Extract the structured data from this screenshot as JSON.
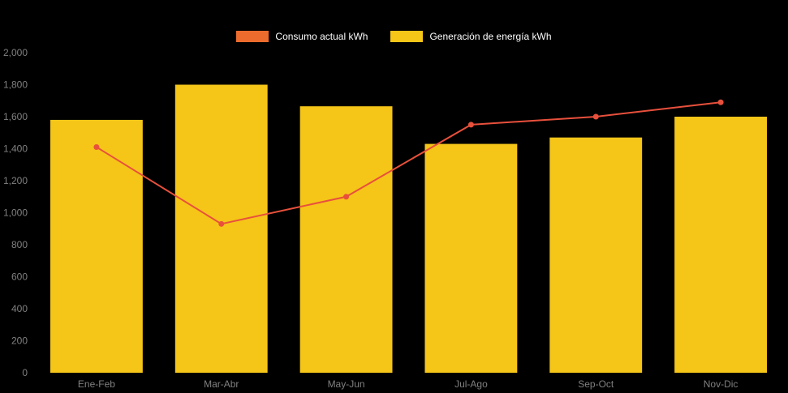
{
  "colors": {
    "background": "#000000",
    "bar": "#F5C518",
    "line": "#E8503C",
    "legend_consumo_swatch": "#EC6B2D",
    "legend_generacion_swatch": "#F5C518",
    "axis_text": "#808080",
    "legend_text": "#FFFFFF"
  },
  "legend": {
    "items": [
      {
        "label": "Consumo actual kWh",
        "color": "#EC6B2D"
      },
      {
        "label": "Generación de energía kWh",
        "color": "#F5C518"
      }
    ]
  },
  "chart_data": {
    "type": "bar+line",
    "title": "",
    "xlabel": "",
    "ylabel": "",
    "categories": [
      "Ene-Feb",
      "Mar-Abr",
      "May-Jun",
      "Jul-Ago",
      "Sep-Oct",
      "Nov-Dic"
    ],
    "series": [
      {
        "name": "Consumo actual kWh",
        "type": "line",
        "color": "#E8503C",
        "values": [
          1410,
          930,
          1100,
          1550,
          1600,
          1690
        ]
      },
      {
        "name": "Generación de energía kWh",
        "type": "bar",
        "color": "#F5C518",
        "values": [
          1580,
          1800,
          1665,
          1430,
          1470,
          1600
        ]
      }
    ],
    "ylim": [
      0,
      2000
    ],
    "ytick_step": 200,
    "ytick_labels": [
      "0",
      "200",
      "400",
      "600",
      "800",
      "1,000",
      "1,200",
      "1,400",
      "1,600",
      "1,800",
      "2,000"
    ],
    "grid": false,
    "legend_position": "top"
  }
}
